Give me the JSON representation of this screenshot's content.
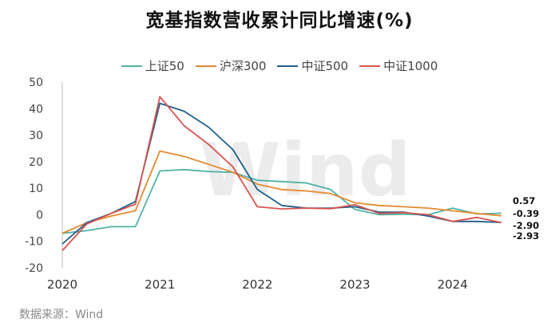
{
  "title": "宽基指数营收累计同比增速(%)",
  "source": "数据来源：Wind",
  "watermark": "Wind",
  "chart_data": {
    "type": "line",
    "title": "宽基指数营收累计同比增速(%)",
    "xlabel": "",
    "ylabel": "",
    "ylim": [
      -20,
      50
    ],
    "yticks": [
      -20,
      -10,
      0,
      10,
      20,
      30,
      40,
      50
    ],
    "xlim": [
      2020.0,
      2024.6
    ],
    "xticks": [
      2020,
      2021,
      2022,
      2023,
      2024
    ],
    "grid": false,
    "legend": "top",
    "series": [
      {
        "name": "上证50",
        "color": "#4FB3A6",
        "x": [
          2020.0,
          2020.25,
          2020.5,
          2020.75,
          2021.0,
          2021.25,
          2021.5,
          2021.75,
          2022.0,
          2022.25,
          2022.5,
          2022.75,
          2023.0,
          2023.25,
          2023.5,
          2023.75,
          2024.0,
          2024.25,
          2024.5
        ],
        "values": [
          -7,
          -6,
          -4.5,
          -4.5,
          16.5,
          17,
          16.3,
          16,
          13,
          12.5,
          12,
          9.5,
          2,
          0,
          0.2,
          0,
          2.5,
          0.3,
          0.57
        ]
      },
      {
        "name": "沪深300",
        "color": "#E58A2F",
        "x": [
          2020.0,
          2020.25,
          2020.5,
          2020.75,
          2021.0,
          2021.25,
          2021.5,
          2021.75,
          2022.0,
          2022.25,
          2022.5,
          2022.75,
          2023.0,
          2023.25,
          2023.5,
          2023.75,
          2024.0,
          2024.25,
          2024.5
        ],
        "values": [
          -7,
          -3,
          -0.5,
          1.5,
          24,
          22,
          19,
          16,
          11.5,
          9.5,
          9,
          8,
          4.5,
          3.5,
          3,
          2.5,
          1.5,
          0.5,
          -0.39
        ]
      },
      {
        "name": "中证500",
        "color": "#1F5F8B",
        "x": [
          2020.0,
          2020.25,
          2020.5,
          2020.75,
          2021.0,
          2021.25,
          2021.5,
          2021.75,
          2022.0,
          2022.25,
          2022.5,
          2022.75,
          2023.0,
          2023.25,
          2023.5,
          2023.75,
          2024.0,
          2024.25,
          2024.5
        ],
        "values": [
          -11,
          -3,
          0.5,
          5,
          42,
          39,
          33,
          24.5,
          9.5,
          3.5,
          2.5,
          2.5,
          3,
          1,
          1,
          -0.5,
          -2.5,
          -2.5,
          -2.9
        ]
      },
      {
        "name": "中证1000",
        "color": "#D9534F",
        "x": [
          2020.0,
          2020.25,
          2020.5,
          2020.75,
          2021.0,
          2021.25,
          2021.5,
          2021.75,
          2022.0,
          2022.25,
          2022.5,
          2022.75,
          2023.0,
          2023.25,
          2023.5,
          2023.75,
          2024.0,
          2024.25,
          2024.5
        ],
        "values": [
          -13.5,
          -3.5,
          0.5,
          4,
          44.5,
          33.5,
          26.5,
          18,
          3,
          2.2,
          2.5,
          2.3,
          3.8,
          0.5,
          0.8,
          0,
          -2.5,
          -1,
          -2.93
        ]
      }
    ],
    "end_labels": [
      "0.57",
      "-0.39",
      "-2.90",
      "-2.93"
    ]
  }
}
